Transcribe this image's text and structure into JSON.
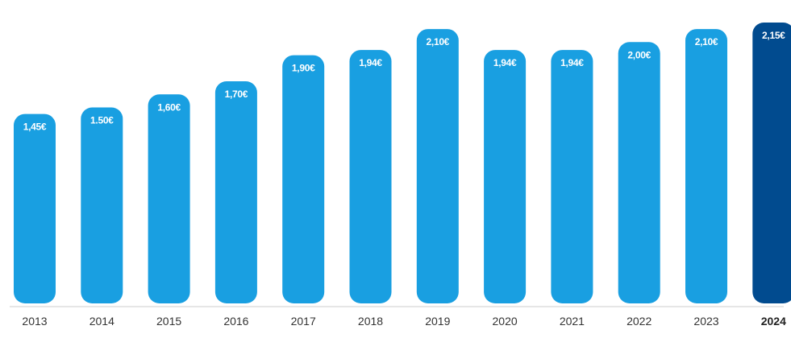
{
  "chart_data": {
    "type": "bar",
    "title": "",
    "xlabel": "",
    "ylabel": "",
    "categories": [
      "2013",
      "2014",
      "2015",
      "2016",
      "2017",
      "2018",
      "2019",
      "2020",
      "2021",
      "2022",
      "2023",
      "2024"
    ],
    "values": [
      1.45,
      1.5,
      1.6,
      1.7,
      1.9,
      1.94,
      2.1,
      1.94,
      1.94,
      2.0,
      2.1,
      2.15
    ],
    "data_labels": [
      "1,45€",
      "1.50€",
      "1,60€",
      "1,70€",
      "1,90€",
      "1,94€",
      "2,10€",
      "1,94€",
      "1,94€",
      "2,00€",
      "2,10€",
      "2,15€"
    ],
    "ylim": [
      0,
      2.15
    ],
    "grid": false,
    "legend": "none",
    "highlight_category": "2024",
    "colors": {
      "bar": "#199fe1",
      "highlight_bar": "#014b8f",
      "label_text": "#ffffff",
      "tick_text": "#333333",
      "baseline": "#cccccc"
    }
  }
}
